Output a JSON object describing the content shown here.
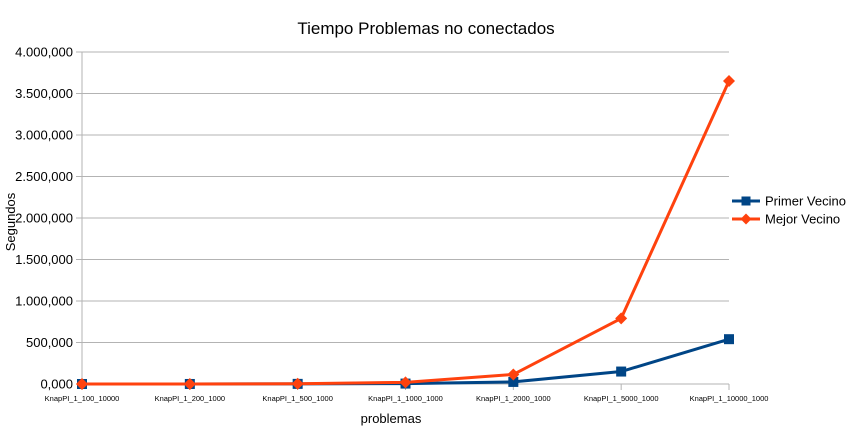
{
  "chart_data": {
    "type": "line",
    "title": "Tiempo Problemas no conectados",
    "xlabel": "problemas",
    "ylabel": "Segundos",
    "categories": [
      "KnapPI_1_100_10000",
      "KnapPI_1_200_1000",
      "KnapPI_1_500_1000",
      "KnapPI_1_1000_1000",
      "KnapPI_1_2000_1000",
      "KnapPI_1_5000_1000",
      "KnapPI_1_10000_1000"
    ],
    "ylim": [
      0,
      4000000
    ],
    "yticks": [
      0,
      500000,
      1000000,
      1500000,
      2000000,
      2500000,
      3000000,
      3500000,
      4000000
    ],
    "ytick_labels": [
      "0,000",
      "500,000",
      "1.000,000",
      "1.500,000",
      "2.000,000",
      "2.500,000",
      "3.000,000",
      "3.500,000",
      "4.000,000"
    ],
    "grid": "horizontal",
    "legend_position": "right",
    "series": [
      {
        "name": "Primer Vecino",
        "color": "#004586",
        "marker": "square",
        "values": [
          0,
          300,
          1500,
          5000,
          25000,
          150000,
          540000
        ]
      },
      {
        "name": "Mejor Vecino",
        "color": "#ff420e",
        "marker": "diamond",
        "values": [
          0,
          500,
          2500,
          20000,
          115000,
          790000,
          3650000
        ]
      }
    ]
  }
}
